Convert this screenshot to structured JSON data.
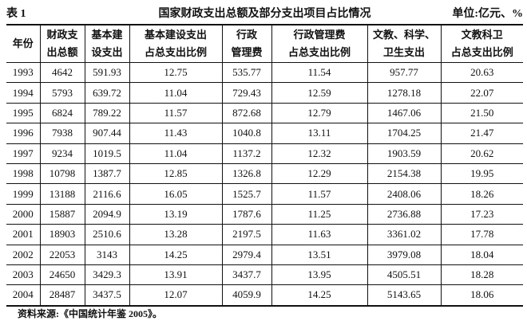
{
  "header": {
    "label": "表 1",
    "title": "国家财政支出总额及部分支出项目占比情况",
    "unit": "单位:亿元、%"
  },
  "table": {
    "header": [
      [
        "年份"
      ],
      [
        "财政支",
        "出总额"
      ],
      [
        "基本建",
        "设支出"
      ],
      [
        "基本建设支出",
        "占总支出比例"
      ],
      [
        "行政",
        "管理费"
      ],
      [
        "行政管理费",
        "占总支出比例"
      ],
      [
        "文教、科学、",
        "卫生支出"
      ],
      [
        "文教科卫",
        "占总支出比例"
      ]
    ],
    "rows": [
      [
        "1993",
        "4642",
        "591.93",
        "12.75",
        "535.77",
        "11.54",
        "957.77",
        "20.63"
      ],
      [
        "1994",
        "5793",
        "639.72",
        "11.04",
        "729.43",
        "12.59",
        "1278.18",
        "22.07"
      ],
      [
        "1995",
        "6824",
        "789.22",
        "11.57",
        "872.68",
        "12.79",
        "1467.06",
        "21.50"
      ],
      [
        "1996",
        "7938",
        "907.44",
        "11.43",
        "1040.8",
        "13.11",
        "1704.25",
        "21.47"
      ],
      [
        "1997",
        "9234",
        "1019.5",
        "11.04",
        "1137.2",
        "12.32",
        "1903.59",
        "20.62"
      ],
      [
        "1998",
        "10798",
        "1387.7",
        "12.85",
        "1326.8",
        "12.29",
        "2154.38",
        "19.95"
      ],
      [
        "1999",
        "13188",
        "2116.6",
        "16.05",
        "1525.7",
        "11.57",
        "2408.06",
        "18.26"
      ],
      [
        "2000",
        "15887",
        "2094.9",
        "13.19",
        "1787.6",
        "11.25",
        "2736.88",
        "17.23"
      ],
      [
        "2001",
        "18903",
        "2510.6",
        "13.28",
        "2197.5",
        "11.63",
        "3361.02",
        "17.78"
      ],
      [
        "2002",
        "22053",
        "3143",
        "14.25",
        "2979.4",
        "13.51",
        "3979.08",
        "18.04"
      ],
      [
        "2003",
        "24650",
        "3429.3",
        "13.91",
        "3437.7",
        "13.95",
        "4505.51",
        "18.28"
      ],
      [
        "2004",
        "28487",
        "3437.5",
        "12.07",
        "4059.9",
        "14.25",
        "5143.65",
        "18.06"
      ]
    ]
  },
  "source": "资料来源:《中国统计年鉴 2005》。"
}
